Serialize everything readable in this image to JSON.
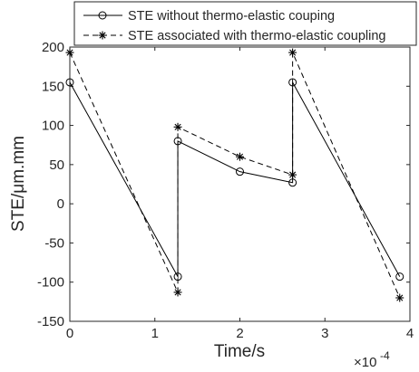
{
  "chart_data": {
    "type": "line",
    "xlabel": "Time/s",
    "ylabel": "STE/μm.mm",
    "x_exponent_label": "×10",
    "x_exponent_power": "-4",
    "xlim": [
      0,
      4
    ],
    "ylim": [
      -150,
      200
    ],
    "xticks": [
      "0",
      "1",
      "2",
      "3",
      "4"
    ],
    "yticks": [
      "200",
      "150",
      "100",
      "50",
      "0",
      "-50",
      "-100",
      "-150"
    ],
    "grid": false,
    "legend_position": "top",
    "series": [
      {
        "name": "STE without thermo-elastic couping",
        "marker": "circle",
        "line": "solid",
        "x": [
          0,
          1.27,
          1.27,
          2.0,
          2.62,
          2.62,
          3.88
        ],
        "y": [
          155,
          -93,
          80,
          41,
          27,
          155,
          -93
        ]
      },
      {
        "name": "STE associated with thermo-elastic coupling",
        "marker": "star",
        "line": "dashed",
        "x": [
          0,
          1.27,
          1.27,
          2.0,
          2.62,
          2.62,
          3.88
        ],
        "y": [
          193,
          -113,
          98,
          60,
          37,
          193,
          -120
        ]
      }
    ]
  }
}
